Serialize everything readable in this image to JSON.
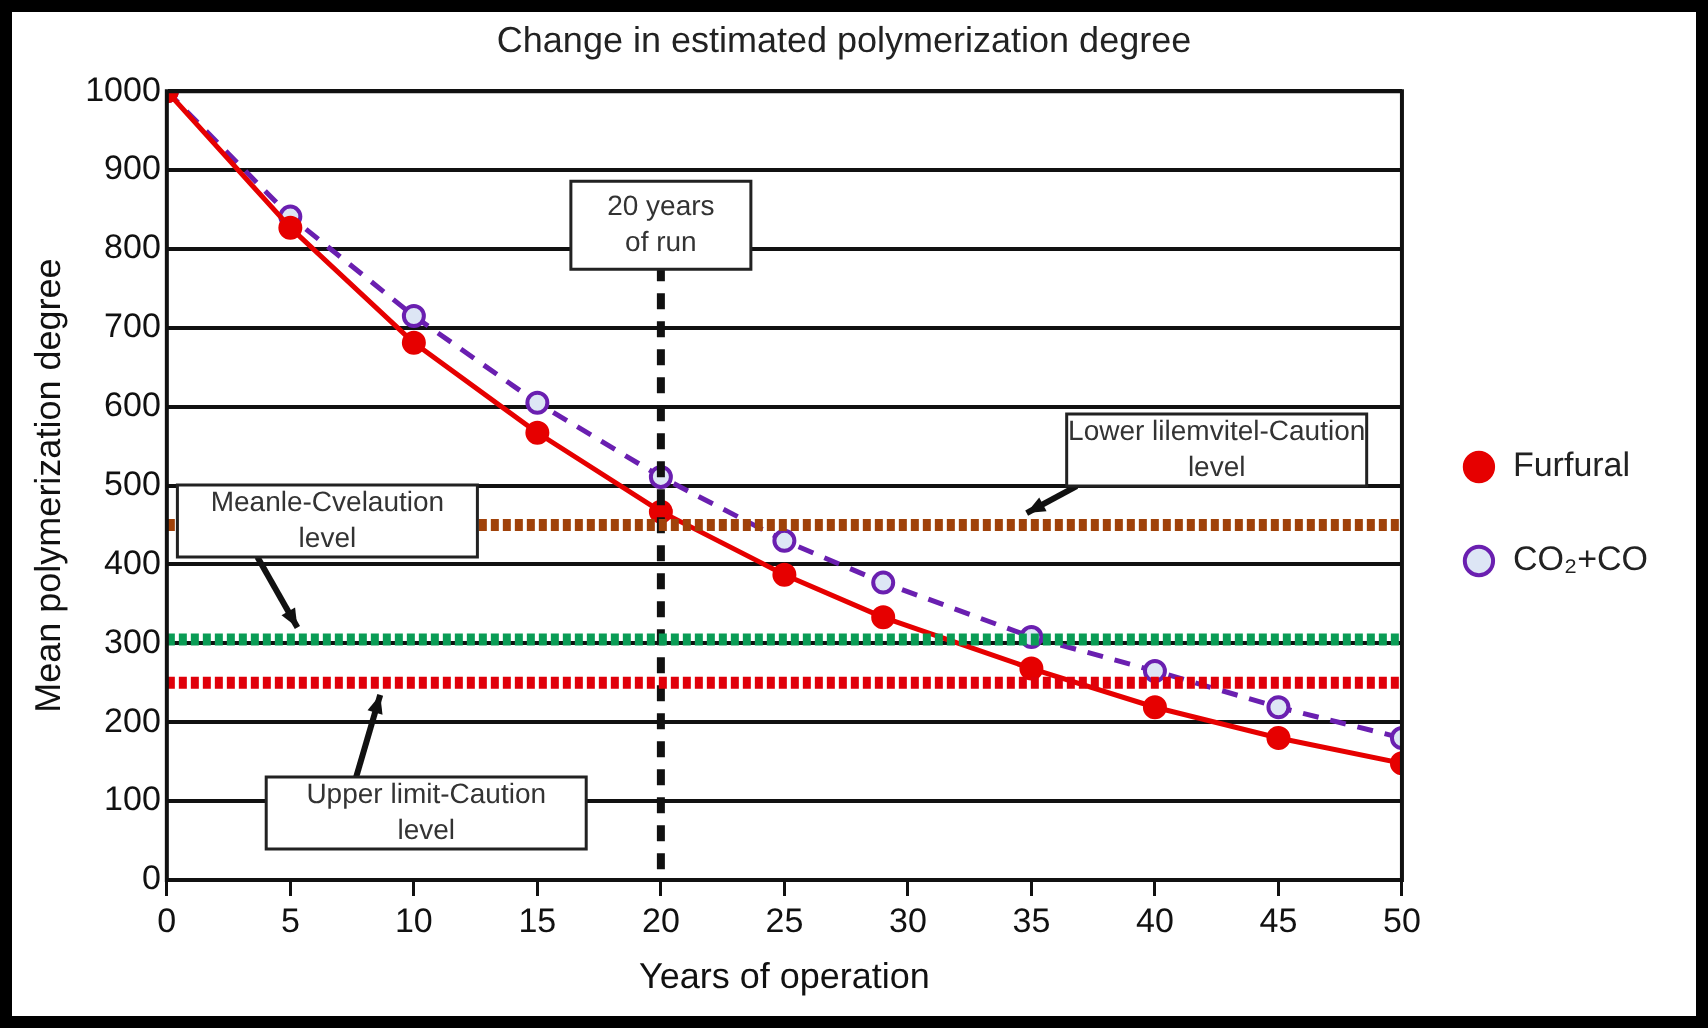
{
  "chart_data": {
    "type": "line",
    "title": "Change in estimated polymerization degree",
    "xlabel": "Years of operation",
    "ylabel": "Mean polymerization degree",
    "xlim": [
      0,
      50
    ],
    "xticks": [
      0,
      5,
      10,
      15,
      20,
      25,
      30,
      35,
      40,
      45,
      50
    ],
    "ylim": [
      0,
      1000
    ],
    "yticks": [
      0,
      100,
      200,
      300,
      400,
      500,
      600,
      700,
      800,
      900,
      1000
    ],
    "grid": "y",
    "legend": "right",
    "series": [
      {
        "name": "Furfural",
        "color": "#e60000",
        "marker": "circle",
        "line_style": "solid",
        "x": [
          0,
          5,
          10,
          15,
          20,
          25,
          29,
          35,
          40,
          45,
          50
        ],
        "values": [
          1000,
          827,
          681,
          567,
          467,
          387,
          333,
          268,
          219,
          180,
          148
        ]
      },
      {
        "name": "CO₂+CO",
        "color": "#6a1fb0",
        "marker": "circle",
        "line_style": "dashed",
        "x": [
          0,
          5,
          10,
          15,
          20,
          25,
          29,
          35,
          40,
          45,
          50
        ],
        "values": [
          1000,
          841,
          715,
          605,
          511,
          430,
          377,
          308,
          265,
          219,
          180
        ]
      }
    ],
    "ref_lines": [
      {
        "axis": "x",
        "value": 20,
        "label": "20 years of run",
        "color": "#111111",
        "line_style": "dashed"
      },
      {
        "axis": "y",
        "value": 450,
        "label": "Lower lilemvitel-Caution level",
        "color": "#a0420a",
        "line_style": "dotted"
      },
      {
        "axis": "y",
        "value": 305,
        "label": "Meanle-Cvelaution level",
        "color": "#0a9c55",
        "line_style": "dotted"
      },
      {
        "axis": "y",
        "value": 250,
        "label": "Upper limit-Caution level",
        "color": "#e0000a",
        "line_style": "dotted"
      }
    ]
  }
}
